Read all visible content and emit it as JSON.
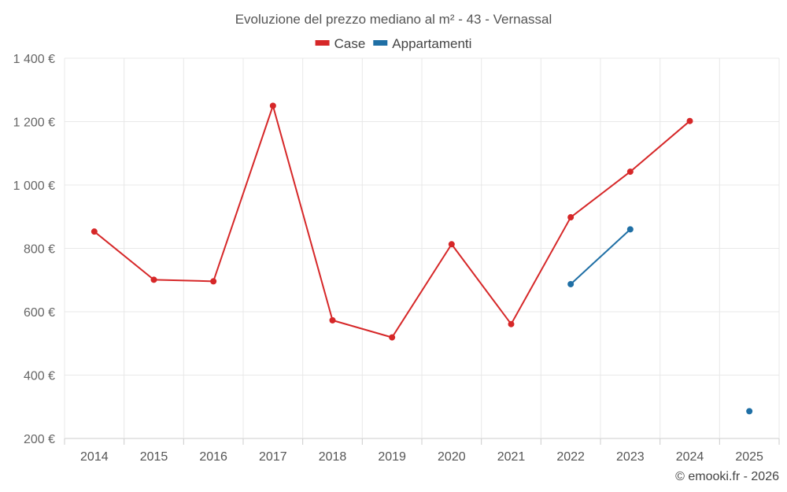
{
  "chart_data": {
    "type": "line",
    "title": "Evoluzione del prezzo mediano al m² - 43 - Vernassal",
    "categories": [
      "2014",
      "2015",
      "2016",
      "2017",
      "2018",
      "2019",
      "2020",
      "2021",
      "2022",
      "2023",
      "2024",
      "2025"
    ],
    "ylim": [
      200,
      1400
    ],
    "yticks": [
      200,
      400,
      600,
      800,
      1000,
      1200,
      1400
    ],
    "ytick_labels": [
      "200 €",
      "400 €",
      "600 €",
      "800 €",
      "1 000 €",
      "1 200 €",
      "1 400 €"
    ],
    "legend_position": "top-center",
    "grid": true,
    "series": [
      {
        "name": "Case",
        "color": "#d62728",
        "values": [
          853,
          701,
          696,
          1250,
          573,
          519,
          813,
          561,
          898,
          1042,
          1202,
          null
        ]
      },
      {
        "name": "Appartamenti",
        "color": "#1f6fa5",
        "values": [
          null,
          null,
          null,
          null,
          null,
          null,
          null,
          null,
          687,
          860,
          null,
          286
        ]
      }
    ]
  },
  "credit": "© emooki.fr - 2026"
}
